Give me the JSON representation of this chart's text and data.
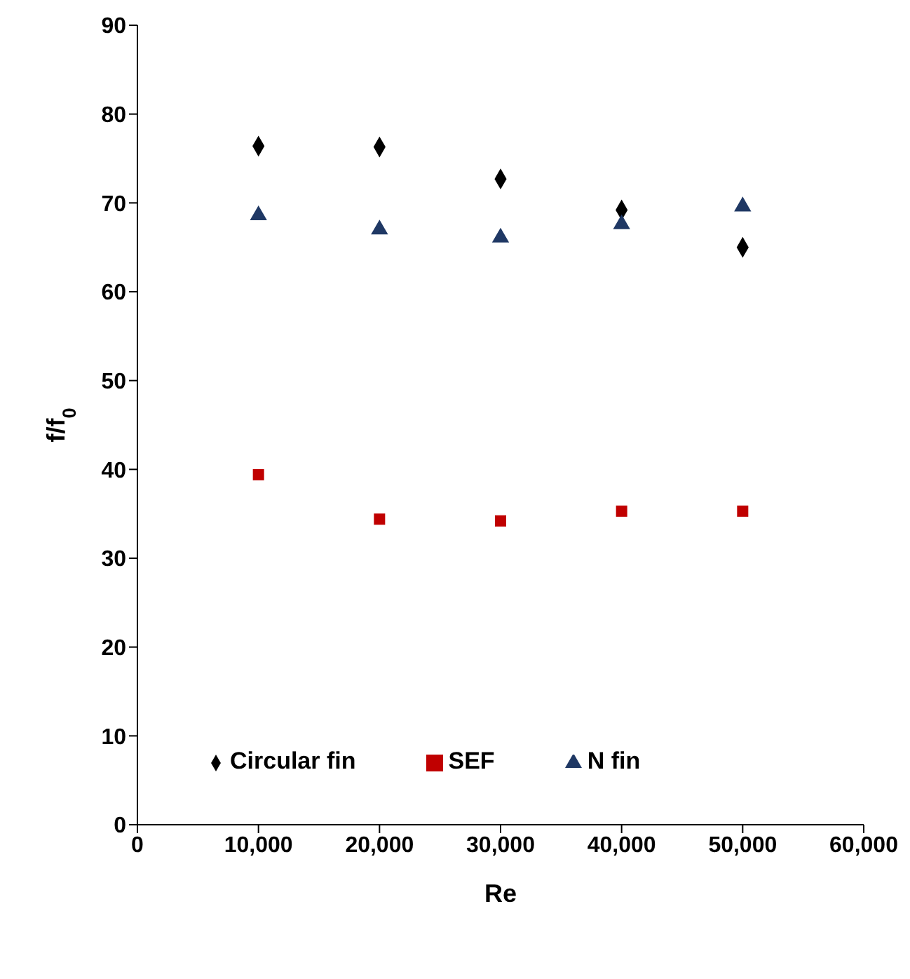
{
  "chart_data": {
    "type": "scatter",
    "xlabel": "Re",
    "ylabel": "f/f$_{0}$",
    "x": [
      10000,
      20000,
      30000,
      40000,
      50000
    ],
    "series": [
      {
        "name": "Circular fin",
        "color": "#000000",
        "marker": "diamond",
        "values": [
          76.4,
          76.3,
          72.7,
          69.2,
          65.0
        ]
      },
      {
        "name": "SEF",
        "color": "#c00000",
        "marker": "square",
        "values": [
          39.4,
          34.4,
          34.2,
          35.3,
          35.3
        ]
      },
      {
        "name": "N fin",
        "color": "#1f3864",
        "marker": "triangle",
        "values": [
          68.6,
          67.0,
          66.1,
          67.6,
          69.6
        ]
      }
    ],
    "xlim": [
      0,
      60000
    ],
    "xticks": [
      0,
      {
        "value": 10000,
        "label": "10,000"
      },
      {
        "value": 20000,
        "label": "20,000"
      },
      {
        "value": 30000,
        "label": "30,000"
      },
      {
        "value": 40000,
        "label": "40,000"
      },
      {
        "value": 50000,
        "label": "50,000"
      },
      {
        "value": 60000,
        "label": "60,000"
      }
    ],
    "ylim": [
      0,
      90
    ],
    "yticks": [
      0,
      10,
      20,
      30,
      40,
      50,
      60,
      70,
      80,
      90
    ],
    "grid": false,
    "legend": "bottom"
  }
}
